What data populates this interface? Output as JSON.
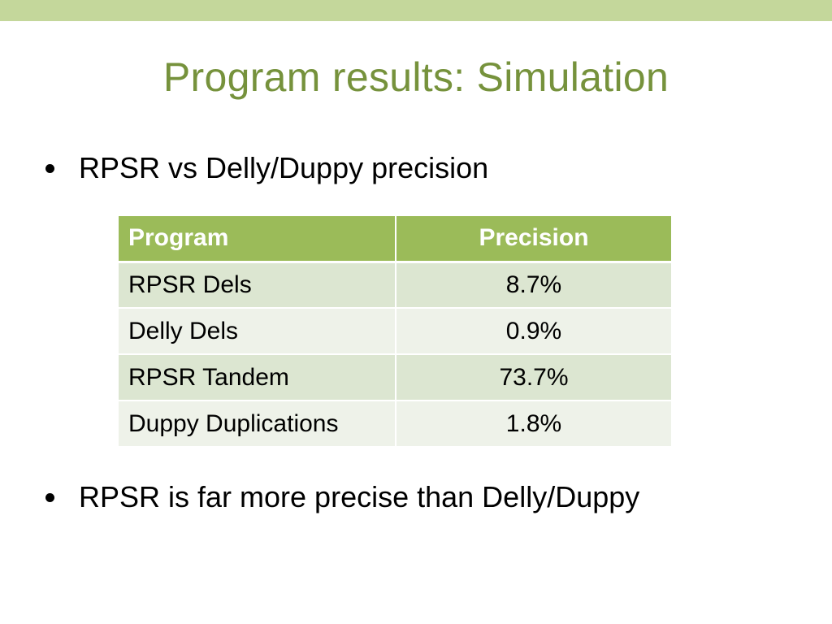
{
  "slide": {
    "title": "Program results: Simulation",
    "bullets": [
      "RPSR vs Delly/Duppy precision",
      "RPSR is far more precise than Delly/Duppy"
    ]
  },
  "table": {
    "headers": [
      "Program",
      "Precision"
    ],
    "rows": [
      [
        "RPSR Dels",
        "8.7%"
      ],
      [
        "Delly Dels",
        "0.9%"
      ],
      [
        "RPSR Tandem",
        "73.7%"
      ],
      [
        "Duppy Duplications",
        "1.8%"
      ]
    ]
  },
  "colors": {
    "accent_bar": "#c4d79b",
    "title_text": "#76923c",
    "table_header": "#9bbb59",
    "row_band_dark": "#dce6d1",
    "row_band_light": "#eef2e9"
  }
}
